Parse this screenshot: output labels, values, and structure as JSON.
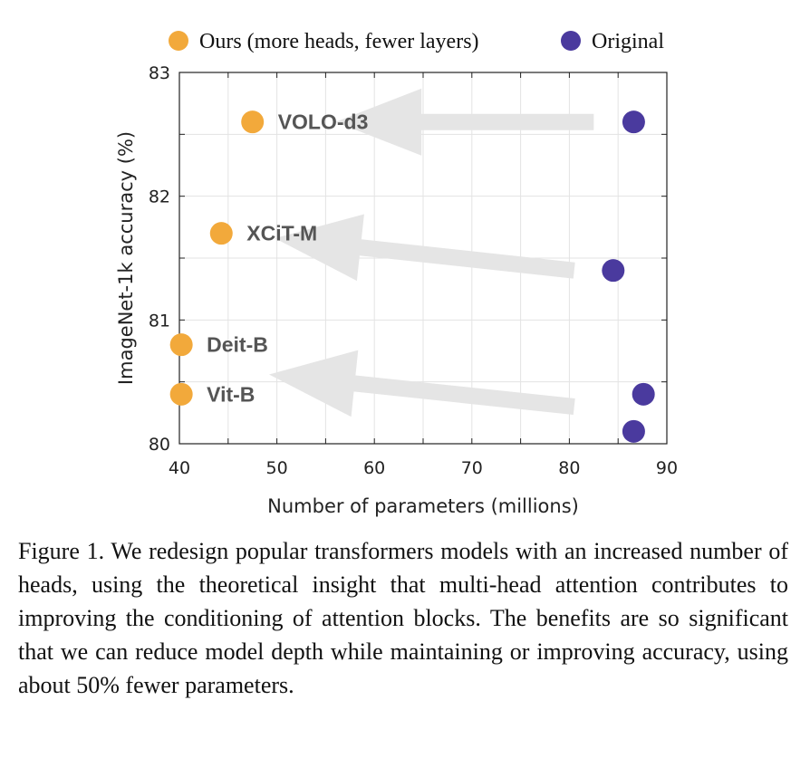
{
  "chart_data": {
    "type": "scatter",
    "xlabel": "Number of parameters (millions)",
    "ylabel": "ImageNet-1k accuracy (%)",
    "xlim": [
      40,
      90
    ],
    "ylim": [
      80,
      83
    ],
    "x_ticks": [
      "40",
      "50",
      "60",
      "70",
      "80",
      "90"
    ],
    "y_ticks": [
      "80",
      "81",
      "82",
      "83"
    ],
    "grid": true,
    "legend_placement": "top",
    "series": [
      {
        "name": "Ours (more heads, fewer layers)",
        "color": "#F2A93B",
        "points": [
          {
            "label": "VOLO-d3",
            "x": 47.5,
            "y": 82.6
          },
          {
            "label": "XCiT-M",
            "x": 44.3,
            "y": 81.7
          },
          {
            "label": "Deit-B",
            "x": 40.2,
            "y": 80.8
          },
          {
            "label": "Vit-B",
            "x": 40.2,
            "y": 80.4
          }
        ]
      },
      {
        "name": "Original",
        "color": "#4A3A9E",
        "points": [
          {
            "x": 86.6,
            "y": 82.6
          },
          {
            "x": 84.5,
            "y": 81.4
          },
          {
            "x": 87.6,
            "y": 80.4
          },
          {
            "x": 86.6,
            "y": 80.1
          }
        ]
      }
    ],
    "arrows": [
      {
        "from": [
          82.5,
          82.6
        ],
        "to": [
          56.0,
          82.6
        ]
      },
      {
        "from": [
          80.5,
          81.4
        ],
        "to": [
          49.8,
          81.66
        ]
      },
      {
        "from": [
          80.5,
          80.3
        ],
        "to": [
          49.2,
          80.56
        ]
      }
    ]
  },
  "caption": "Figure 1.  We redesign popular transformers models with an increased number of heads, using the theoretical insight that multi-head attention contributes to improving the conditioning of attention blocks.  The benefits are so significant that we can reduce model depth while maintaining or improving accuracy, using about 50% fewer parameters."
}
